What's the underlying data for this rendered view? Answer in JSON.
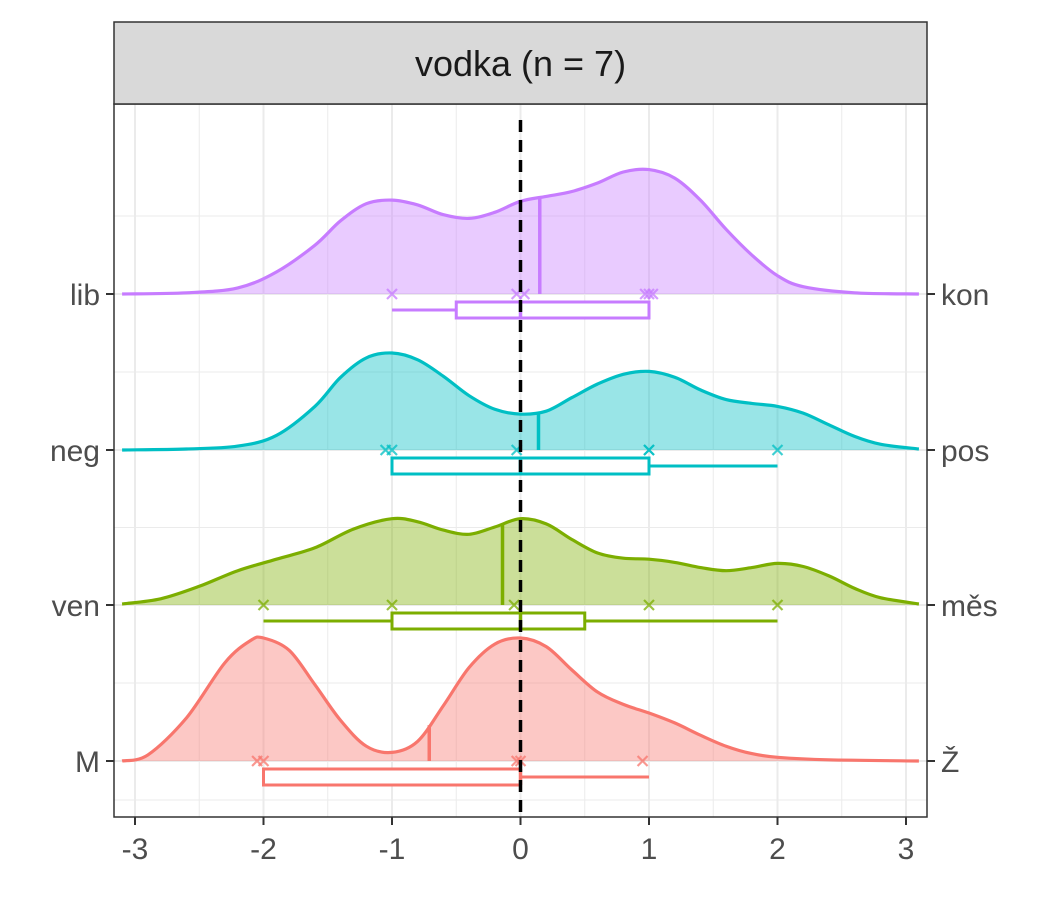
{
  "chart_data": {
    "type": "ridgeline-density-boxplot",
    "title": "",
    "facet_label": "vodka (n = 7)",
    "xlabel": "",
    "ylabel": "",
    "xlim": [
      -3.1,
      3.1
    ],
    "x_ticks": [
      -3,
      -2,
      -1,
      0,
      1,
      2,
      3
    ],
    "x_tick_labels": [
      "-3",
      "-2",
      "-1",
      "0",
      "1",
      "2",
      "3"
    ],
    "reference_line_x": 0,
    "grid": true,
    "series": [
      {
        "left_label": "M",
        "right_label": "Ž",
        "color": "#F8766D",
        "points": [
          -2.05,
          -2.0,
          -0.03,
          0.0,
          0.95
        ],
        "mean": -0.71,
        "box": {
          "whisker_low": -2,
          "q1": -2,
          "median": 0,
          "q3": 0,
          "whisker_high": 1
        },
        "density": [
          [
            -3.1,
            0.0
          ],
          [
            -2.9,
            0.05
          ],
          [
            -2.6,
            0.35
          ],
          [
            -2.3,
            0.8
          ],
          [
            -2.1,
            0.98
          ],
          [
            -2.0,
            1.0
          ],
          [
            -1.8,
            0.9
          ],
          [
            -1.6,
            0.62
          ],
          [
            -1.4,
            0.33
          ],
          [
            -1.2,
            0.12
          ],
          [
            -1.0,
            0.07
          ],
          [
            -0.8,
            0.16
          ],
          [
            -0.6,
            0.45
          ],
          [
            -0.4,
            0.76
          ],
          [
            -0.2,
            0.95
          ],
          [
            0.0,
            1.0
          ],
          [
            0.2,
            0.93
          ],
          [
            0.4,
            0.74
          ],
          [
            0.6,
            0.56
          ],
          [
            0.8,
            0.46
          ],
          [
            1.0,
            0.39
          ],
          [
            1.2,
            0.31
          ],
          [
            1.4,
            0.21
          ],
          [
            1.6,
            0.12
          ],
          [
            1.8,
            0.06
          ],
          [
            2.0,
            0.03
          ],
          [
            2.4,
            0.01
          ],
          [
            3.1,
            0.0
          ]
        ]
      },
      {
        "left_label": "ven",
        "right_label": "měs",
        "color": "#7CAE00",
        "points": [
          -2.0,
          -1.0,
          -0.05,
          1.0,
          2.0
        ],
        "mean": -0.14,
        "box": {
          "whisker_low": -2,
          "q1": -1,
          "median": 0,
          "q3": 0.5,
          "whisker_high": 2
        },
        "density": [
          [
            -3.1,
            0.01
          ],
          [
            -2.8,
            0.06
          ],
          [
            -2.5,
            0.18
          ],
          [
            -2.2,
            0.33
          ],
          [
            -1.9,
            0.44
          ],
          [
            -1.6,
            0.55
          ],
          [
            -1.3,
            0.73
          ],
          [
            -1.0,
            0.83
          ],
          [
            -0.8,
            0.8
          ],
          [
            -0.6,
            0.72
          ],
          [
            -0.4,
            0.68
          ],
          [
            -0.2,
            0.75
          ],
          [
            0.0,
            0.83
          ],
          [
            0.2,
            0.78
          ],
          [
            0.4,
            0.63
          ],
          [
            0.6,
            0.5
          ],
          [
            0.8,
            0.45
          ],
          [
            1.0,
            0.44
          ],
          [
            1.2,
            0.41
          ],
          [
            1.4,
            0.36
          ],
          [
            1.6,
            0.33
          ],
          [
            1.8,
            0.36
          ],
          [
            2.0,
            0.4
          ],
          [
            2.2,
            0.37
          ],
          [
            2.4,
            0.28
          ],
          [
            2.6,
            0.16
          ],
          [
            2.8,
            0.07
          ],
          [
            3.1,
            0.01
          ]
        ]
      },
      {
        "left_label": "neg",
        "right_label": "pos",
        "color": "#00BFC4",
        "points": [
          -1.05,
          -1.0,
          -0.03,
          1.0,
          1.0,
          2.0
        ],
        "mean": 0.14,
        "box": {
          "whisker_low": -1,
          "q1": -1,
          "median": 0,
          "q3": 1,
          "whisker_high": 2
        },
        "density": [
          [
            -3.1,
            0.0
          ],
          [
            -2.6,
            0.01
          ],
          [
            -2.2,
            0.04
          ],
          [
            -1.9,
            0.15
          ],
          [
            -1.6,
            0.45
          ],
          [
            -1.4,
            0.75
          ],
          [
            -1.2,
            0.95
          ],
          [
            -1.0,
            1.0
          ],
          [
            -0.8,
            0.93
          ],
          [
            -0.6,
            0.76
          ],
          [
            -0.4,
            0.56
          ],
          [
            -0.2,
            0.42
          ],
          [
            0.0,
            0.37
          ],
          [
            0.2,
            0.4
          ],
          [
            0.4,
            0.54
          ],
          [
            0.6,
            0.68
          ],
          [
            0.8,
            0.78
          ],
          [
            1.0,
            0.81
          ],
          [
            1.2,
            0.75
          ],
          [
            1.4,
            0.62
          ],
          [
            1.6,
            0.52
          ],
          [
            1.8,
            0.48
          ],
          [
            2.0,
            0.45
          ],
          [
            2.2,
            0.38
          ],
          [
            2.4,
            0.26
          ],
          [
            2.6,
            0.14
          ],
          [
            2.8,
            0.06
          ],
          [
            3.1,
            0.01
          ]
        ]
      },
      {
        "left_label": "lib",
        "right_label": "kon",
        "color": "#C77CFF",
        "points": [
          -1.0,
          -0.03,
          0.03,
          0.97,
          1.0,
          1.03
        ],
        "mean": 0.15,
        "box": {
          "whisker_low": -1,
          "q1": -0.5,
          "median": 0,
          "q3": 1,
          "whisker_high": 1
        },
        "density": [
          [
            -3.1,
            0.0
          ],
          [
            -2.6,
            0.01
          ],
          [
            -2.2,
            0.05
          ],
          [
            -1.9,
            0.18
          ],
          [
            -1.6,
            0.4
          ],
          [
            -1.4,
            0.6
          ],
          [
            -1.2,
            0.74
          ],
          [
            -1.0,
            0.77
          ],
          [
            -0.8,
            0.73
          ],
          [
            -0.6,
            0.65
          ],
          [
            -0.4,
            0.62
          ],
          [
            -0.2,
            0.67
          ],
          [
            0.0,
            0.76
          ],
          [
            0.2,
            0.8
          ],
          [
            0.4,
            0.84
          ],
          [
            0.6,
            0.91
          ],
          [
            0.8,
            1.0
          ],
          [
            1.0,
            1.02
          ],
          [
            1.2,
            0.95
          ],
          [
            1.4,
            0.77
          ],
          [
            1.6,
            0.53
          ],
          [
            1.8,
            0.32
          ],
          [
            2.0,
            0.15
          ],
          [
            2.2,
            0.06
          ],
          [
            2.6,
            0.01
          ],
          [
            3.1,
            0.0
          ]
        ]
      }
    ]
  }
}
